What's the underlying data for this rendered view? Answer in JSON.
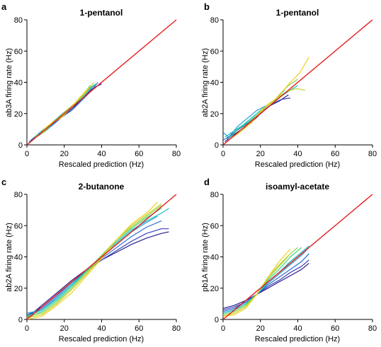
{
  "figure": {
    "diagonal_color": "#e41a1c",
    "series_colors": [
      "#2b1d8c",
      "#3a3fb8",
      "#2f6fd0",
      "#1f9fd6",
      "#12c0c0",
      "#3fcf8a",
      "#8fd140",
      "#c9d22a",
      "#f0d020"
    ]
  },
  "chart_data": [
    {
      "type": "line",
      "panel_letter": "a",
      "title": "1-pentanol",
      "xlabel": "Rescaled prediction (Hz)",
      "ylabel": "ab3A firing rate (Hz)",
      "xlim": [
        0,
        80
      ],
      "ylim": [
        0,
        80
      ],
      "xticks": [
        "0",
        "20",
        "40",
        "60",
        "80"
      ],
      "yticks": [
        "0",
        "20",
        "40",
        "60",
        "80"
      ],
      "grid": false,
      "diagonal": [
        [
          0,
          0
        ],
        [
          80,
          80
        ]
      ],
      "series": [
        {
          "x": [
            1,
            5,
            10,
            15,
            20,
            25,
            30,
            35,
            40
          ],
          "y": [
            1,
            5,
            9,
            14,
            19,
            24,
            30,
            36,
            39
          ]
        },
        {
          "x": [
            2,
            6,
            11,
            16,
            21,
            26,
            31,
            36
          ],
          "y": [
            3,
            6,
            11,
            15,
            21,
            26,
            33,
            38
          ]
        },
        {
          "x": [
            1,
            4,
            9,
            14,
            19,
            24,
            29,
            34,
            38
          ],
          "y": [
            2,
            4,
            10,
            13,
            18,
            22,
            28,
            34,
            40
          ]
        },
        {
          "x": [
            3,
            8,
            13,
            18,
            23,
            28,
            33
          ],
          "y": [
            4,
            9,
            13,
            19,
            24,
            29,
            35
          ]
        },
        {
          "x": [
            2,
            7,
            12,
            17,
            22,
            27,
            32,
            37
          ],
          "y": [
            2,
            7,
            11,
            18,
            22,
            28,
            35,
            39
          ]
        },
        {
          "x": [
            5,
            10,
            15,
            20,
            25,
            30,
            35
          ],
          "y": [
            6,
            9,
            16,
            20,
            25,
            31,
            37
          ]
        },
        {
          "x": [
            4,
            9,
            14,
            19,
            24,
            29,
            34
          ],
          "y": [
            5,
            8,
            15,
            18,
            24,
            31,
            38
          ]
        },
        {
          "x": [
            6,
            11,
            16,
            21,
            26,
            31,
            36
          ],
          "y": [
            6,
            12,
            16,
            22,
            27,
            33,
            40
          ]
        },
        {
          "x": [
            3,
            8,
            13,
            18,
            23,
            28,
            33
          ],
          "y": [
            3,
            8,
            14,
            17,
            23,
            30,
            36
          ]
        }
      ]
    },
    {
      "type": "line",
      "panel_letter": "b",
      "title": "1-pentanol",
      "xlabel": "Rescaled prediction (Hz)",
      "ylabel": "ab2A firing rate (Hz)",
      "xlim": [
        0,
        80
      ],
      "ylim": [
        0,
        80
      ],
      "xticks": [
        "0",
        "20",
        "40",
        "60",
        "80"
      ],
      "yticks": [
        "0",
        "20",
        "40",
        "60",
        "80"
      ],
      "grid": false,
      "diagonal": [
        [
          0,
          0
        ],
        [
          80,
          80
        ]
      ],
      "series": [
        {
          "x": [
            1,
            5,
            10,
            15,
            20,
            25,
            30,
            35
          ],
          "y": [
            2,
            6,
            10,
            14,
            20,
            25,
            28,
            32
          ]
        },
        {
          "x": [
            2,
            6,
            11,
            16,
            21,
            26,
            31,
            36
          ],
          "y": [
            4,
            8,
            12,
            16,
            22,
            26,
            29,
            30
          ]
        },
        {
          "x": [
            0,
            4,
            9,
            14,
            19,
            24
          ],
          "y": [
            3,
            6,
            11,
            15,
            19,
            24
          ]
        },
        {
          "x": [
            0,
            3,
            8,
            13,
            18,
            23
          ],
          "y": [
            8,
            5,
            12,
            17,
            22,
            25
          ]
        },
        {
          "x": [
            1,
            6,
            11,
            16,
            21,
            26,
            31,
            36,
            40
          ],
          "y": [
            5,
            9,
            13,
            18,
            23,
            27,
            31,
            35,
            38
          ]
        },
        {
          "x": [
            3,
            8,
            13,
            18,
            23,
            28,
            33
          ],
          "y": [
            4,
            10,
            14,
            19,
            25,
            29,
            35
          ]
        },
        {
          "x": [
            5,
            10,
            15,
            20,
            25,
            30,
            35,
            40
          ],
          "y": [
            5,
            10,
            15,
            21,
            25,
            32,
            38,
            42
          ]
        },
        {
          "x": [
            4,
            9,
            14,
            19,
            24,
            29,
            34,
            39,
            44
          ],
          "y": [
            4,
            8,
            13,
            20,
            26,
            30,
            34,
            36,
            35
          ]
        },
        {
          "x": [
            6,
            11,
            16,
            21,
            26,
            31,
            36,
            41,
            46
          ],
          "y": [
            6,
            11,
            15,
            23,
            27,
            33,
            40,
            46,
            56
          ]
        }
      ]
    },
    {
      "type": "line",
      "panel_letter": "c",
      "title": "2-butanone",
      "xlabel": "Rescaled prediction (Hz)",
      "ylabel": "ab2A firing rate (Hz)",
      "xlim": [
        0,
        80
      ],
      "ylim": [
        0,
        80
      ],
      "xticks": [
        "0",
        "20",
        "40",
        "60",
        "80"
      ],
      "yticks": [
        "0",
        "20",
        "40",
        "60",
        "80"
      ],
      "grid": false,
      "diagonal": [
        [
          0,
          0
        ],
        [
          80,
          80
        ]
      ],
      "series": [
        {
          "x": [
            0,
            8,
            16,
            24,
            32,
            40,
            48,
            56,
            64,
            72,
            76
          ],
          "y": [
            1,
            9,
            17,
            25,
            32,
            38,
            43,
            48,
            52,
            55,
            56
          ]
        },
        {
          "x": [
            0,
            8,
            16,
            24,
            32,
            40,
            48,
            56,
            64,
            72,
            76
          ],
          "y": [
            2,
            8,
            16,
            24,
            31,
            38,
            44,
            50,
            55,
            58,
            58
          ]
        },
        {
          "x": [
            0,
            8,
            16,
            24,
            32,
            40,
            48,
            56,
            64,
            72
          ],
          "y": [
            3,
            7,
            15,
            24,
            31,
            39,
            46,
            53,
            59,
            63
          ]
        },
        {
          "x": [
            0,
            8,
            16,
            24,
            32,
            40,
            48,
            56,
            64,
            70
          ],
          "y": [
            4,
            6,
            14,
            23,
            31,
            40,
            48,
            56,
            62,
            66
          ]
        },
        {
          "x": [
            0,
            8,
            16,
            24,
            32,
            40,
            48,
            56,
            64,
            72,
            76
          ],
          "y": [
            2,
            6,
            13,
            22,
            31,
            41,
            49,
            57,
            63,
            68,
            71
          ]
        },
        {
          "x": [
            0,
            8,
            16,
            24,
            32,
            40,
            48,
            56,
            64,
            72
          ],
          "y": [
            1,
            5,
            12,
            21,
            31,
            41,
            50,
            58,
            65,
            71
          ]
        },
        {
          "x": [
            0,
            8,
            16,
            24,
            32,
            40,
            48,
            56,
            64,
            72
          ],
          "y": [
            2,
            4,
            11,
            20,
            30,
            41,
            51,
            59,
            66,
            73
          ]
        },
        {
          "x": [
            0,
            8,
            16,
            24,
            32,
            40,
            48,
            56,
            64,
            72
          ],
          "y": [
            1,
            3,
            10,
            19,
            29,
            40,
            51,
            60,
            67,
            74
          ]
        },
        {
          "x": [
            0,
            8,
            16,
            24,
            32,
            40,
            48,
            56,
            64,
            70
          ],
          "y": [
            0,
            2,
            9,
            17,
            28,
            39,
            51,
            61,
            68,
            75
          ]
        }
      ]
    },
    {
      "type": "line",
      "panel_letter": "d",
      "title": "isoamyl-acetate",
      "xlabel": "Rescaled prediction (Hz)",
      "ylabel": "pb1A firing rate (Hz)",
      "xlim": [
        0,
        80
      ],
      "ylim": [
        0,
        80
      ],
      "xticks": [
        "0",
        "20",
        "40",
        "60",
        "80"
      ],
      "yticks": [
        "0",
        "20",
        "40",
        "60",
        "80"
      ],
      "grid": false,
      "diagonal": [
        [
          0,
          0
        ],
        [
          80,
          80
        ]
      ],
      "series": [
        {
          "x": [
            0,
            6,
            12,
            18,
            24,
            30,
            36,
            42,
            46
          ],
          "y": [
            7,
            9,
            12,
            16,
            20,
            24,
            28,
            32,
            36
          ]
        },
        {
          "x": [
            0,
            6,
            12,
            18,
            24,
            30,
            36,
            42,
            46
          ],
          "y": [
            6,
            8,
            11,
            16,
            21,
            25,
            30,
            34,
            38
          ]
        },
        {
          "x": [
            0,
            6,
            12,
            18,
            24,
            30,
            36,
            42,
            46
          ],
          "y": [
            5,
            7,
            11,
            16,
            22,
            27,
            32,
            37,
            42
          ]
        },
        {
          "x": [
            0,
            6,
            12,
            18,
            24,
            30,
            36,
            42,
            46
          ],
          "y": [
            4,
            6,
            10,
            16,
            23,
            29,
            35,
            41,
            46
          ]
        },
        {
          "x": [
            0,
            6,
            12,
            18,
            24,
            30,
            36,
            42,
            46
          ],
          "y": [
            4,
            6,
            10,
            16,
            24,
            30,
            37,
            43,
            47
          ]
        },
        {
          "x": [
            0,
            6,
            12,
            18,
            24,
            30,
            36,
            42
          ],
          "y": [
            3,
            5,
            9,
            16,
            25,
            32,
            40,
            46
          ]
        },
        {
          "x": [
            0,
            6,
            12,
            18,
            24,
            30,
            36,
            40
          ],
          "y": [
            3,
            5,
            9,
            16,
            26,
            34,
            42,
            46
          ]
        },
        {
          "x": [
            0,
            6,
            12,
            18,
            24,
            30,
            36
          ],
          "y": [
            2,
            4,
            8,
            16,
            27,
            35,
            42
          ]
        },
        {
          "x": [
            0,
            6,
            12,
            18,
            24,
            30,
            36
          ],
          "y": [
            2,
            3,
            7,
            16,
            27,
            37,
            45
          ]
        }
      ]
    }
  ]
}
